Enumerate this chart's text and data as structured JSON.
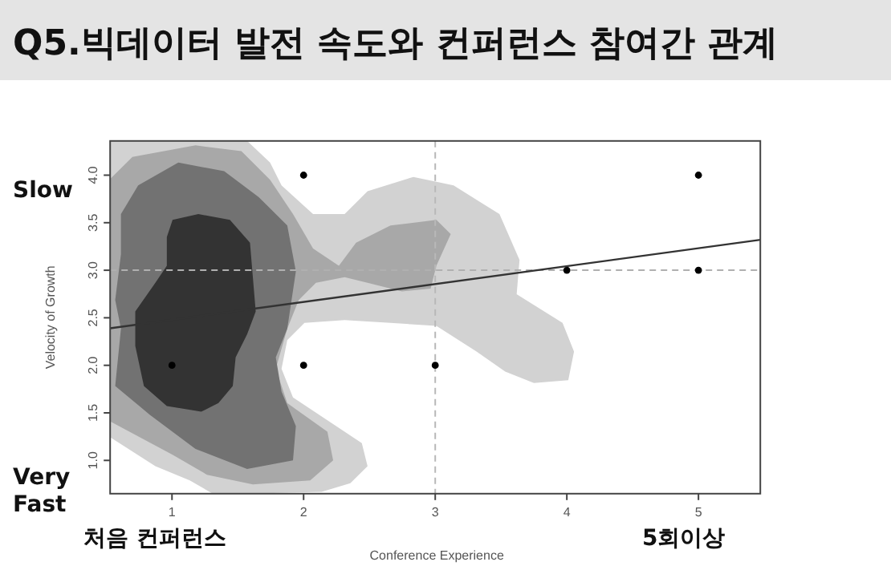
{
  "chart_data": {
    "type": "scatter",
    "title": "Q5.빅데이터 발전 속도와 컨퍼런스 참여간 관계",
    "xlabel": "Conference Experience",
    "ylabel": "Velocity of Growth",
    "series": [
      {
        "x": [
          1,
          2,
          2,
          3,
          4,
          5,
          5
        ],
        "color": "#000000",
        "values": [
          2,
          4,
          2,
          2,
          3,
          4,
          3
        ]
      },
      {
        "type": "line",
        "x": [
          0.53,
          5.47
        ],
        "color": "#333333",
        "marker": "none",
        "values": [
          2.39,
          3.32
        ]
      }
    ],
    "xlim": [
      0.53,
      5.47
    ],
    "ylim": [
      0.65,
      4.36
    ],
    "xticks": [
      1,
      2,
      3,
      4,
      5
    ],
    "yticks": [
      {
        "value": 1,
        "label": "1.0"
      },
      {
        "value": 1.5,
        "label": "1.5"
      },
      {
        "value": 2,
        "label": "2.0"
      },
      {
        "value": 2.5,
        "label": "2.5"
      },
      {
        "value": 3,
        "label": "3.0"
      },
      {
        "value": 3.5,
        "label": "3.5"
      },
      {
        "value": 4,
        "label": "4.0"
      }
    ],
    "ref_lines": [
      {
        "axis": "x",
        "value": 3,
        "color": "#b8b8b8",
        "line_style": "dashed"
      },
      {
        "axis": "y",
        "value": 3,
        "color": "#b0b0b0",
        "line_style": "dashed"
      }
    ],
    "annotations": [
      "Slow",
      "Very Fast",
      "처음 컨퍼런스",
      "5회이상"
    ],
    "marker": "circle",
    "grid": false
  }
}
